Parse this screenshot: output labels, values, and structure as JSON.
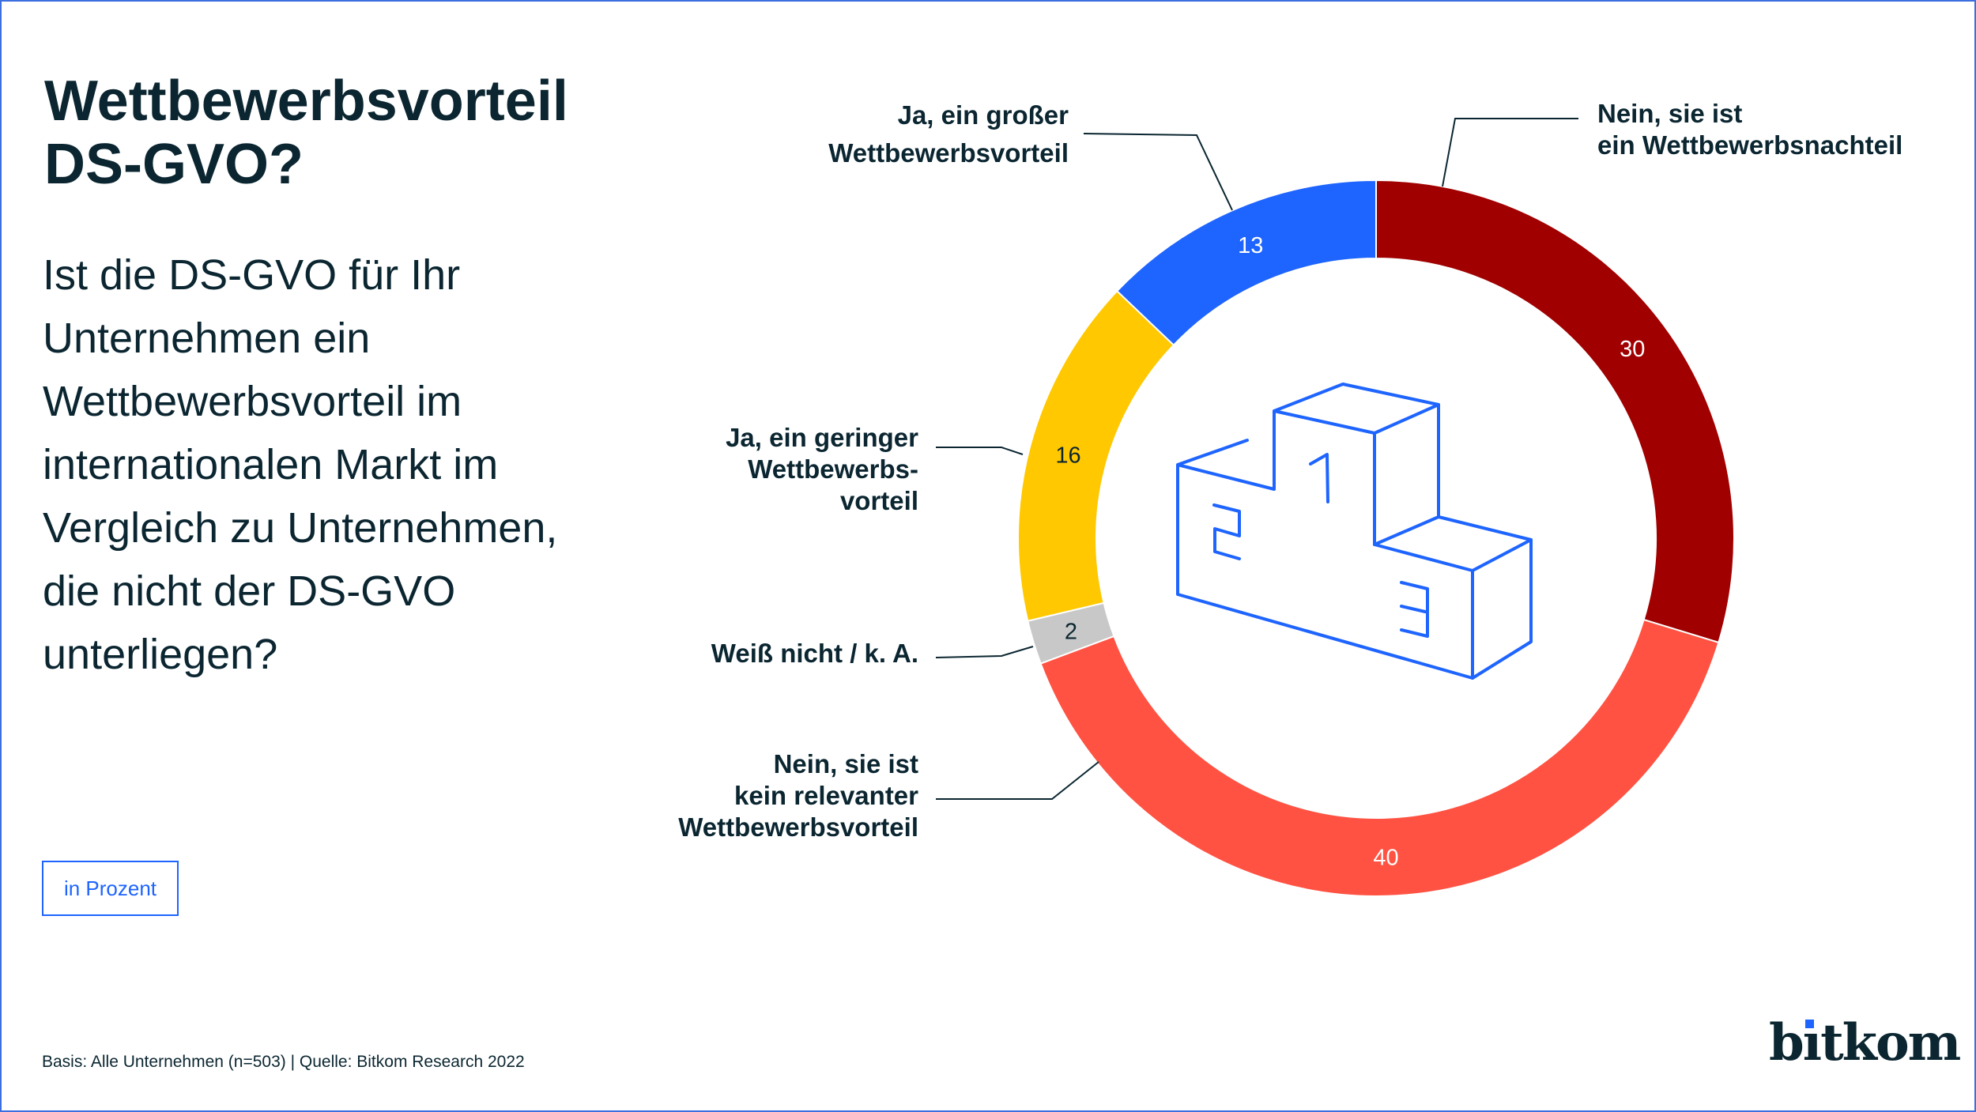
{
  "header": {
    "title_lines": [
      "Wettbewerbsvorteil",
      "DS-GVO?"
    ],
    "question_lines": [
      "Ist die DS-GVO für Ihr",
      "Unternehmen ein",
      "Wettbewerbsvorteil im",
      "internationalen Markt im",
      "Vergleich zu Unternehmen,",
      "die nicht der DS-GVO",
      "unterliegen?"
    ]
  },
  "unit_label": "in Prozent",
  "footer": "Basis: Alle Unternehmen (n=503) | Quelle: Bitkom Research 2022",
  "logo": "bitkom",
  "chart_data": {
    "type": "pie",
    "subtype": "donut",
    "title": "Wettbewerbsvorteil DS-GVO?",
    "unit": "in Prozent",
    "slices": [
      {
        "label_lines": [
          "Nein, sie ist",
          "ein Wettbewerbsnachteil"
        ],
        "value": 30,
        "color": "#a10000",
        "text_color": "#ffffff"
      },
      {
        "label_lines": [
          "Nein, sie ist",
          "kein relevanter",
          "Wettbewerbsvorteil"
        ],
        "value": 40,
        "color": "#ff5242",
        "text_color": "#ffffff"
      },
      {
        "label_lines": [
          "Weiß nicht / k. A."
        ],
        "value": 2,
        "color": "#c8c8c8",
        "text_color": "#0b2631"
      },
      {
        "label_lines": [
          "Ja, ein geringer",
          "Wettbewerbs-",
          "vorteil"
        ],
        "value": 16,
        "color": "#ffc800",
        "text_color": "#0b2631"
      },
      {
        "label_lines": [
          "Ja, ein großer",
          "Wettbewerbsvorteil"
        ],
        "value": 13,
        "color": "#1e64ff",
        "text_color": "#ffffff"
      }
    ],
    "icon": "podium-icon",
    "icon_numbers": [
      "1",
      "2",
      "3"
    ]
  }
}
